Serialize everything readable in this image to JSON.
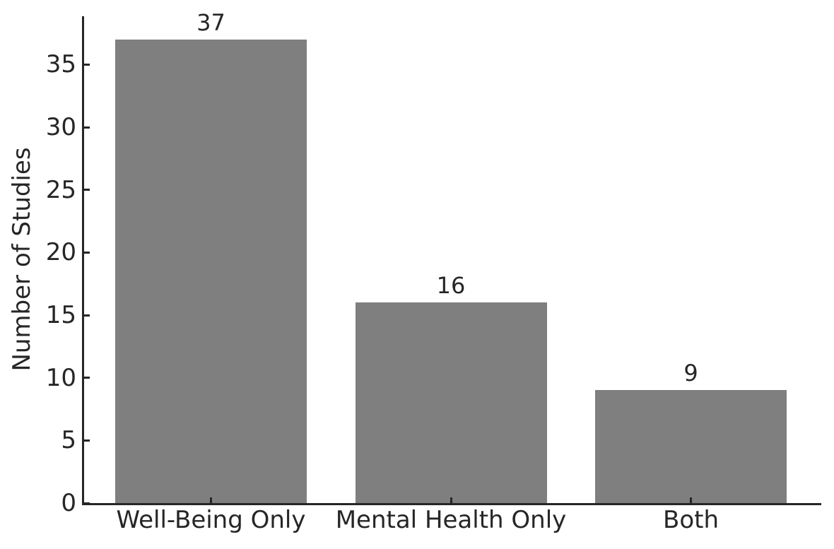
{
  "chart_data": {
    "type": "bar",
    "title": "",
    "categories": [
      "Well-Being Only",
      "Mental Health Only",
      "Both"
    ],
    "values": [
      37,
      16,
      9
    ],
    "bar_value_labels": [
      "37",
      "16",
      "9"
    ],
    "xlabel": "",
    "ylabel": "Number of Studies",
    "yticks": [
      0,
      5,
      10,
      15,
      20,
      25,
      30,
      35
    ],
    "ytick_labels": [
      "0",
      "5",
      "10",
      "15",
      "20",
      "25",
      "30",
      "35"
    ],
    "ylim": [
      0,
      38.9
    ],
    "grid": false,
    "legend": null,
    "colors": {
      "bar": "#7f7f7f",
      "axis": "#262626",
      "text": "#262626",
      "background": "#ffffff"
    }
  }
}
